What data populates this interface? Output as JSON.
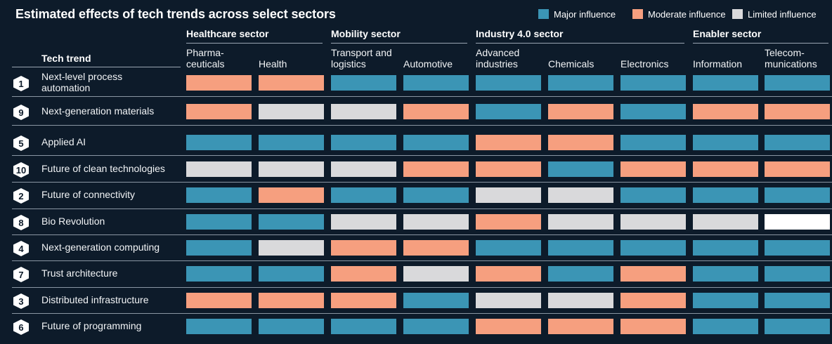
{
  "title": "Estimated effects of tech trends across select sectors",
  "colors": {
    "background": "#0d1b2a",
    "major": "#3b95b5",
    "moderate": "#f69f7f",
    "limited": "#d9d9db",
    "none": "#ffffff"
  },
  "legend": [
    {
      "key": "major",
      "label": "Major influence"
    },
    {
      "key": "moderate",
      "label": "Moderate influence"
    },
    {
      "key": "limited",
      "label": "Limited influence"
    }
  ],
  "trend_column_header": "Tech trend",
  "chart_data": {
    "type": "heatmap",
    "title": "Estimated effects of tech trends across select sectors",
    "legend_placement": "top-right",
    "sectors": [
      {
        "name": "Healthcare sector",
        "columns": [
          "Pharma-\nceuticals",
          "Health"
        ]
      },
      {
        "name": "Mobility sector",
        "columns": [
          "Transport and\nlogistics",
          "Automotive"
        ]
      },
      {
        "name": "Industry 4.0 sector",
        "columns": [
          "Advanced\nindustries",
          "Chemicals",
          "Electronics"
        ]
      },
      {
        "name": "Enabler sector",
        "columns": [
          "Information",
          "Telecom-\nmunications"
        ]
      }
    ],
    "columns": [
      "Pharma-\nceuticals",
      "Health",
      "Transport and\nlogistics",
      "Automotive",
      "Advanced\nindustries",
      "Chemicals",
      "Electronics",
      "Information",
      "Telecom-\nmunications"
    ],
    "rows": [
      {
        "rank": "1",
        "trend": "Next-level process\nautomation",
        "values": [
          "moderate",
          "moderate",
          "major",
          "major",
          "major",
          "major",
          "major",
          "major",
          "major"
        ]
      },
      {
        "rank": "9",
        "trend": "Next-generation materials",
        "values": [
          "moderate",
          "limited",
          "limited",
          "moderate",
          "major",
          "moderate",
          "major",
          "moderate",
          "moderate"
        ]
      },
      {
        "rank": "5",
        "trend": "Applied AI",
        "values": [
          "major",
          "major",
          "major",
          "major",
          "moderate",
          "moderate",
          "major",
          "major",
          "major"
        ]
      },
      {
        "rank": "10",
        "trend": "Future of clean technologies",
        "values": [
          "limited",
          "limited",
          "limited",
          "moderate",
          "moderate",
          "major",
          "moderate",
          "moderate",
          "moderate"
        ]
      },
      {
        "rank": "2",
        "trend": "Future of connectivity",
        "values": [
          "major",
          "moderate",
          "major",
          "major",
          "limited",
          "limited",
          "major",
          "major",
          "major"
        ]
      },
      {
        "rank": "8",
        "trend": "Bio Revolution",
        "values": [
          "major",
          "major",
          "limited",
          "limited",
          "moderate",
          "limited",
          "limited",
          "limited",
          "none"
        ]
      },
      {
        "rank": "4",
        "trend": "Next-generation computing",
        "values": [
          "major",
          "limited",
          "moderate",
          "moderate",
          "major",
          "major",
          "major",
          "major",
          "major"
        ]
      },
      {
        "rank": "7",
        "trend": "Trust architecture",
        "values": [
          "major",
          "major",
          "moderate",
          "limited",
          "moderate",
          "major",
          "moderate",
          "major",
          "major"
        ]
      },
      {
        "rank": "3",
        "trend": "Distributed infrastructure",
        "values": [
          "moderate",
          "moderate",
          "moderate",
          "major",
          "limited",
          "limited",
          "moderate",
          "major",
          "major"
        ]
      },
      {
        "rank": "6",
        "trend": "Future of programming",
        "values": [
          "major",
          "major",
          "major",
          "major",
          "moderate",
          "moderate",
          "moderate",
          "major",
          "major"
        ]
      }
    ]
  }
}
